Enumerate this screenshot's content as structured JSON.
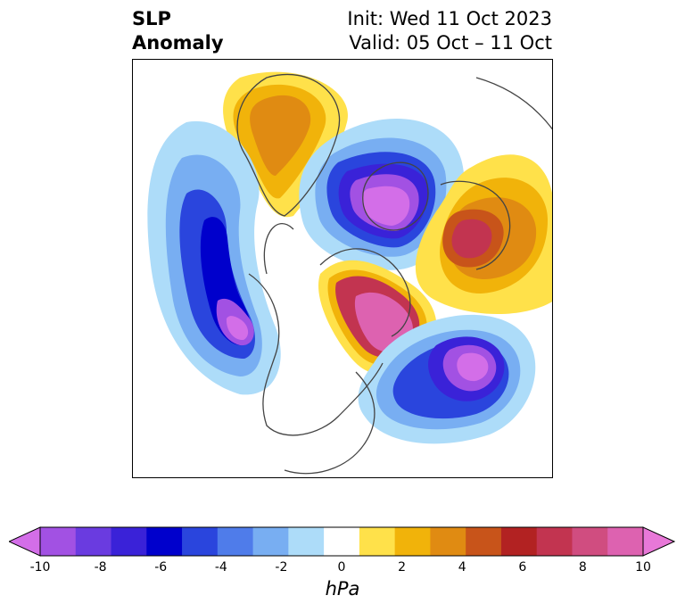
{
  "title": {
    "left_line1": "SLP",
    "left_line2": "Anomaly",
    "right_line1": "Init: Wed 11 Oct 2023",
    "right_line2": "Valid: 05 Oct – 11 Oct"
  },
  "colorbar": {
    "unit": "hPa",
    "ticks": [
      "-10",
      "-8",
      "-6",
      "-4",
      "-2",
      "0",
      "2",
      "4",
      "6",
      "8",
      "10"
    ],
    "colors": [
      "#d36ee8",
      "#a251e3",
      "#6a3be0",
      "#3a22d8",
      "#0000cc",
      "#2a45dd",
      "#4f7cea",
      "#78aef2",
      "#addcf9",
      "#ffffff",
      "#ffe14a",
      "#f1b30a",
      "#e08b12",
      "#c8541a",
      "#b22222",
      "#c23450",
      "#d04d80",
      "#dd62b0",
      "#e878d8"
    ],
    "extend": "both"
  }
}
